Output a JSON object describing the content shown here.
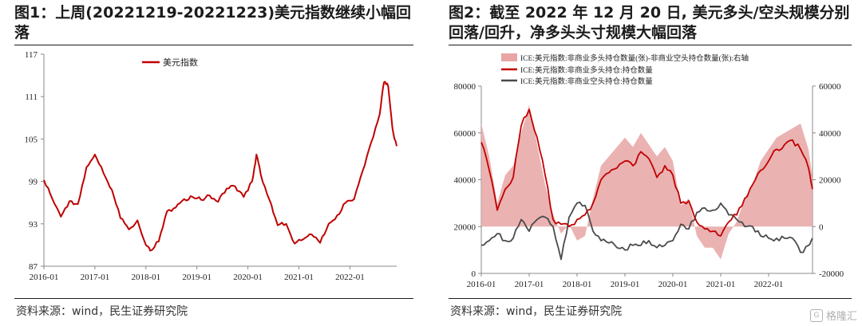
{
  "left": {
    "title": "图1：上周(20221219-20221223)美元指数继续小幅回落",
    "source": "资料来源：wind，民生证券研究院",
    "chart_data": {
      "type": "line",
      "legend": [
        "美元指数"
      ],
      "legend_position": "top-center",
      "color": "#c00000",
      "ylim": [
        87,
        117
      ],
      "yticks": [
        "117",
        "111",
        "105",
        "99",
        "93",
        "87"
      ],
      "xlim": [
        "2016-01",
        "2022-12"
      ],
      "xticks": [
        "2016-01",
        "2017-01",
        "2018-01",
        "2019-01",
        "2020-01",
        "2021-01",
        "2022-01"
      ],
      "series": [
        {
          "name": "美元指数",
          "x": [
            "2016-01",
            "2016-03",
            "2016-05",
            "2016-07",
            "2016-09",
            "2016-11",
            "2017-01",
            "2017-03",
            "2017-05",
            "2017-07",
            "2017-09",
            "2017-11",
            "2018-01",
            "2018-02",
            "2018-04",
            "2018-06",
            "2018-08",
            "2018-10",
            "2018-12",
            "2019-02",
            "2019-04",
            "2019-06",
            "2019-08",
            "2019-10",
            "2019-12",
            "2020-02",
            "2020-03",
            "2020-04",
            "2020-06",
            "2020-08",
            "2020-10",
            "2020-12",
            "2021-02",
            "2021-04",
            "2021-06",
            "2021-08",
            "2021-10",
            "2021-12",
            "2022-02",
            "2022-04",
            "2022-06",
            "2022-08",
            "2022-09",
            "2022-10",
            "2022-11",
            "2022-12"
          ],
          "values": [
            99.2,
            96.5,
            94.0,
            96.2,
            95.8,
            101.0,
            102.8,
            100.2,
            97.8,
            93.8,
            92.2,
            93.5,
            90.0,
            89.2,
            90.5,
            94.8,
            95.3,
            96.5,
            96.8,
            96.4,
            97.0,
            96.1,
            98.0,
            98.3,
            96.8,
            99.0,
            102.8,
            100.0,
            96.5,
            92.8,
            93.0,
            90.2,
            90.8,
            91.5,
            90.3,
            93.0,
            94.2,
            96.0,
            96.5,
            100.5,
            104.5,
            108.5,
            113.0,
            112.5,
            106.5,
            104.0
          ]
        }
      ]
    }
  },
  "right": {
    "title": "图2：截至 2022 年 12 月 20 日, 美元多头/空头规模分别回落/回升，净多头头寸规模大幅回落",
    "source": "资料来源：wind，民生证券研究院",
    "chart_data": {
      "type": "area",
      "legend": [
        "ICE:美元指数:非商业多头持仓数量(张)-非商业空头持仓数量(张):右轴",
        "ICE:美元指数:非商业多头持仓:持仓数量",
        "ICE:美元指数:非商业空头持仓:持仓数量"
      ],
      "legend_position": "top",
      "colors": [
        "#e8a5a5",
        "#c00000",
        "#4a4a4a"
      ],
      "ylim_left": [
        0,
        80000
      ],
      "yticks_left": [
        "80000",
        "60000",
        "40000",
        "20000",
        "0"
      ],
      "ylim_right": [
        -20000,
        60000
      ],
      "yticks_right": [
        "60000",
        "40000",
        "20000",
        "0",
        "-20000"
      ],
      "xlim": [
        "2016-01",
        "2022-12"
      ],
      "xticks": [
        "2016-01",
        "2017-01",
        "2018-01",
        "2019-01",
        "2020-01",
        "2021-01",
        "2022-01"
      ],
      "series": [
        {
          "name": "ICE:美元指数:非商业多头持仓数量(张)-非商业空头持仓数量(张):右轴",
          "axis": "right",
          "x": [
            "2016-01",
            "2016-03",
            "2016-05",
            "2016-07",
            "2016-09",
            "2016-11",
            "2017-01",
            "2017-03",
            "2017-05",
            "2017-07",
            "2017-09",
            "2017-11",
            "2018-01",
            "2018-03",
            "2018-05",
            "2018-07",
            "2018-09",
            "2018-11",
            "2019-01",
            "2019-03",
            "2019-05",
            "2019-07",
            "2019-09",
            "2019-11",
            "2020-01",
            "2020-03",
            "2020-05",
            "2020-07",
            "2020-09",
            "2020-11",
            "2021-01",
            "2021-03",
            "2021-05",
            "2021-07",
            "2021-09",
            "2021-11",
            "2022-01",
            "2022-03",
            "2022-05",
            "2022-07",
            "2022-09",
            "2022-11",
            "2022-12"
          ],
          "values": [
            44000,
            30000,
            10000,
            22000,
            26000,
            40000,
            52000,
            35000,
            18000,
            5000,
            -3000,
            1000,
            -6000,
            -4000,
            12000,
            26000,
            30000,
            34000,
            38000,
            34000,
            40000,
            35000,
            30000,
            34000,
            28000,
            9000,
            12000,
            -4000,
            -9000,
            -9000,
            -14000,
            -3000,
            2000,
            12000,
            18000,
            28000,
            33000,
            38000,
            40000,
            42000,
            44000,
            33000,
            21000
          ]
        },
        {
          "name": "ICE:美元指数:非商业多头持仓:持仓数量",
          "axis": "left",
          "x": [
            "2016-01",
            "2016-03",
            "2016-05",
            "2016-07",
            "2016-09",
            "2016-11",
            "2017-01",
            "2017-03",
            "2017-05",
            "2017-07",
            "2017-09",
            "2017-11",
            "2018-01",
            "2018-03",
            "2018-05",
            "2018-07",
            "2018-09",
            "2018-11",
            "2019-01",
            "2019-03",
            "2019-05",
            "2019-07",
            "2019-09",
            "2019-11",
            "2020-01",
            "2020-03",
            "2020-05",
            "2020-07",
            "2020-09",
            "2020-11",
            "2021-01",
            "2021-03",
            "2021-05",
            "2021-07",
            "2021-09",
            "2021-11",
            "2022-01",
            "2022-03",
            "2022-05",
            "2022-07",
            "2022-09",
            "2022-11",
            "2022-12"
          ],
          "values": [
            56000,
            44000,
            27000,
            36000,
            41000,
            63000,
            70000,
            58000,
            42000,
            23000,
            21000,
            20000,
            23000,
            25000,
            30000,
            40000,
            43000,
            45000,
            48000,
            46000,
            52000,
            49000,
            41000,
            46000,
            42000,
            30000,
            31000,
            22000,
            19000,
            18000,
            16000,
            22000,
            25000,
            32000,
            38000,
            44000,
            48000,
            53000,
            55000,
            57000,
            53000,
            45000,
            36000
          ]
        },
        {
          "name": "ICE:美元指数:非商业空头持仓:持仓数量",
          "axis": "left",
          "x": [
            "2016-01",
            "2016-03",
            "2016-05",
            "2016-07",
            "2016-09",
            "2016-11",
            "2017-01",
            "2017-03",
            "2017-05",
            "2017-07",
            "2017-09",
            "2017-11",
            "2018-01",
            "2018-03",
            "2018-05",
            "2018-07",
            "2018-09",
            "2018-11",
            "2019-01",
            "2019-03",
            "2019-05",
            "2019-07",
            "2019-09",
            "2019-11",
            "2020-01",
            "2020-03",
            "2020-05",
            "2020-07",
            "2020-09",
            "2020-11",
            "2021-01",
            "2021-03",
            "2021-05",
            "2021-07",
            "2021-09",
            "2021-11",
            "2022-01",
            "2022-03",
            "2022-05",
            "2022-07",
            "2022-09",
            "2022-11",
            "2022-12"
          ],
          "values": [
            12000,
            14000,
            17000,
            14000,
            15000,
            23000,
            18000,
            23000,
            24000,
            20000,
            6000,
            24000,
            30000,
            29000,
            18000,
            14000,
            13000,
            11000,
            10000,
            12000,
            12000,
            14000,
            11000,
            12000,
            14000,
            21000,
            19000,
            26000,
            28000,
            27000,
            30000,
            25000,
            23000,
            20000,
            20000,
            16000,
            15000,
            15000,
            15000,
            15000,
            9000,
            12000,
            15000
          ]
        }
      ]
    }
  },
  "watermark": {
    "logo": "G",
    "text": "格隆汇"
  }
}
